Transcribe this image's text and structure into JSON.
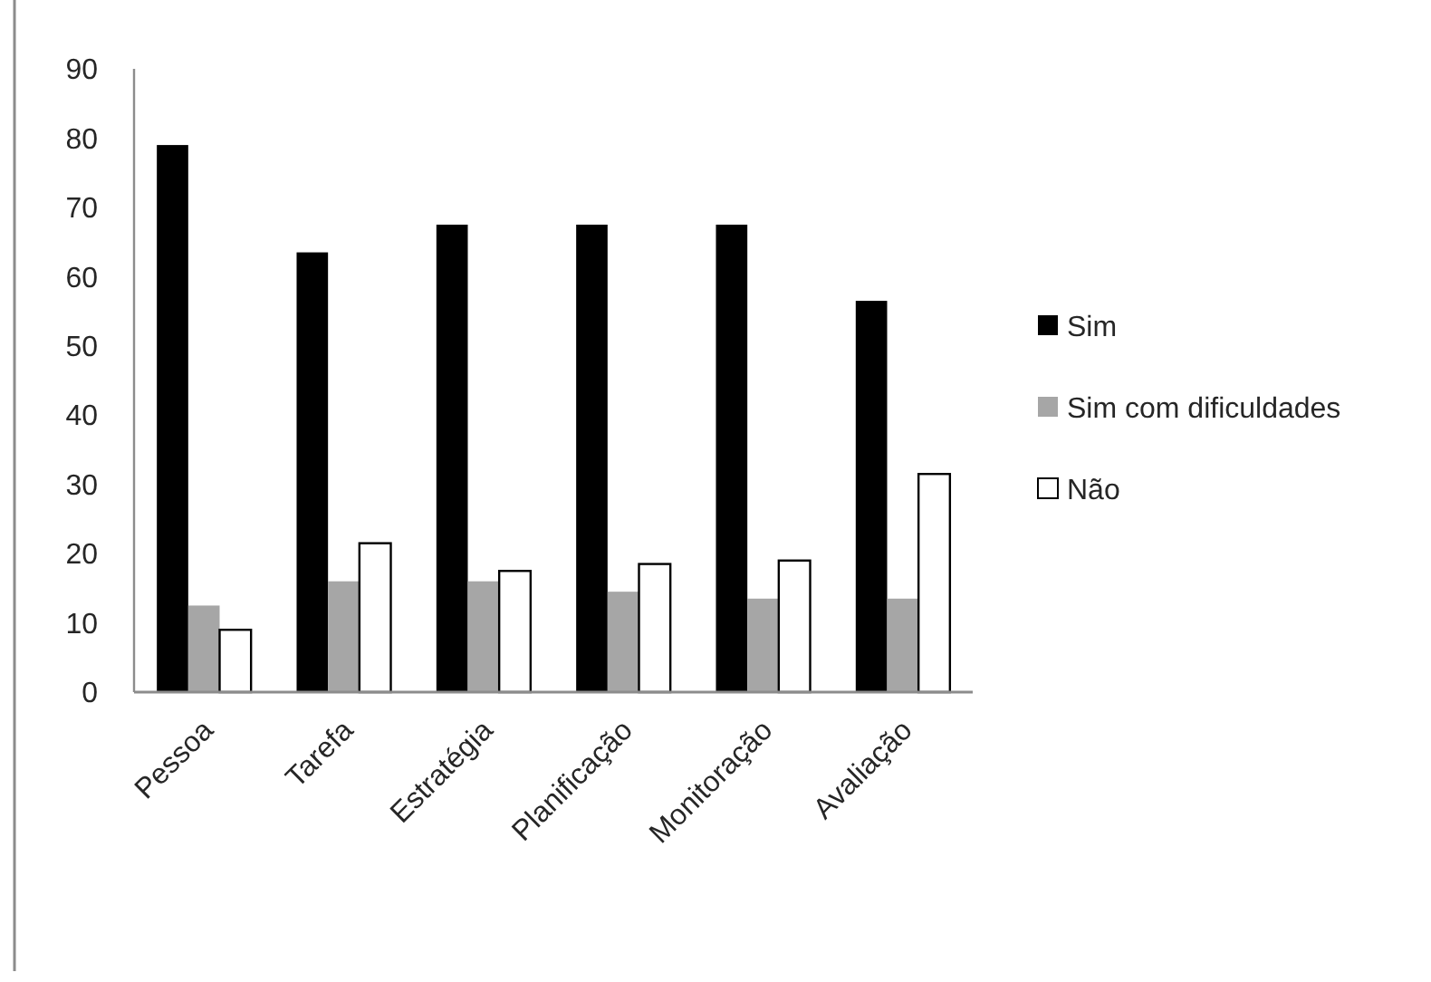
{
  "chart_data": {
    "type": "bar",
    "categories": [
      "Pessoa",
      "Tarefa",
      "Estratégia",
      "Planificação",
      "Monitoração",
      "Avaliação"
    ],
    "series": [
      {
        "name": "Sim",
        "color": "#000000",
        "values": [
          79,
          63.5,
          67.5,
          67.5,
          67.5,
          56.5
        ]
      },
      {
        "name": "Sim com dificuldades",
        "color": "#a6a6a6",
        "values": [
          12.5,
          16,
          16,
          14.5,
          13.5,
          13.5
        ]
      },
      {
        "name": "Não",
        "color": "#ffffff",
        "values": [
          9,
          21.5,
          17.5,
          18.5,
          19,
          31.5
        ]
      }
    ],
    "ylim": [
      0,
      90
    ],
    "yticks": [
      0,
      10,
      20,
      30,
      40,
      50,
      60,
      70,
      80,
      90
    ],
    "grid": false,
    "legend": "right"
  }
}
